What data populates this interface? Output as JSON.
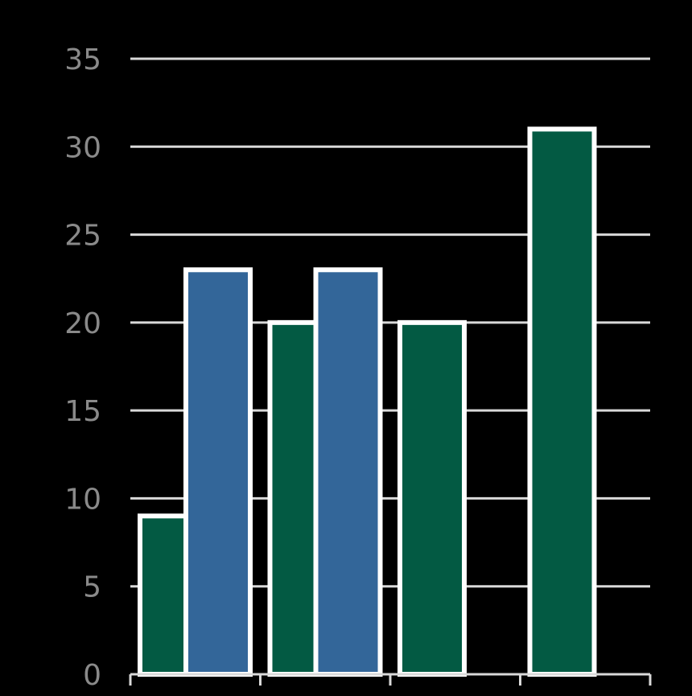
{
  "chart_data": {
    "type": "bar",
    "categories": [
      "",
      "",
      "",
      ""
    ],
    "series": [
      {
        "color": "#035a43",
        "values": [
          9,
          20,
          20,
          31
        ]
      },
      {
        "color": "#336699",
        "values": [
          23,
          23,
          null,
          null
        ]
      }
    ],
    "y_ticks": [
      "0",
      "5",
      "10",
      "15",
      "20",
      "25",
      "30",
      "35"
    ],
    "ylim": [
      0,
      35
    ],
    "grid": true,
    "legend": "none",
    "title": "",
    "xlabel": "",
    "ylabel": "",
    "colors": {
      "background": "#000000",
      "gridline": "#d9d9d9",
      "tick_label": "#8a8a8a",
      "bar_outline": "#ffffff"
    }
  }
}
